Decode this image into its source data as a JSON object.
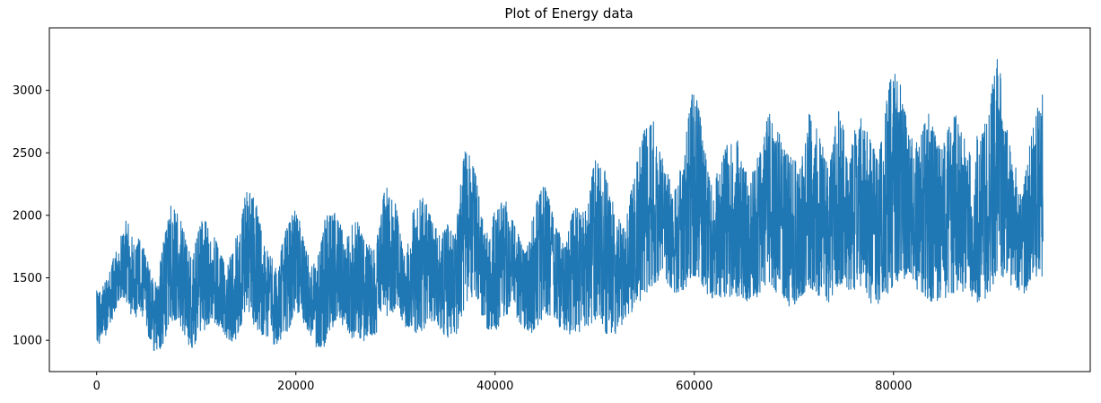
{
  "chart_data": {
    "type": "line",
    "title": "Plot of Energy data",
    "xlabel": "",
    "ylabel": "",
    "xlim": [
      -4750,
      99750
    ],
    "ylim": [
      750,
      3500
    ],
    "x_ticks": [
      0,
      20000,
      40000,
      60000,
      80000
    ],
    "x_tick_labels": [
      "0",
      "20000",
      "40000",
      "60000",
      "80000"
    ],
    "y_ticks": [
      1000,
      1500,
      2000,
      2500,
      3000
    ],
    "y_tick_labels": [
      "1000",
      "1500",
      "2000",
      "2500",
      "3000"
    ],
    "grid": false,
    "line_color": "#1f77b4",
    "series": [
      {
        "x_start": 0,
        "x_end": 95000,
        "envelope_x": [
          0,
          500,
          1500,
          2500,
          3000,
          3500,
          4500,
          5500,
          6000,
          7000,
          7500,
          8500,
          9500,
          10500,
          11500,
          12500,
          13000,
          14000,
          15000,
          16000,
          17000,
          18000,
          19000,
          20000,
          21000,
          22000,
          23000,
          24000,
          25000,
          26000,
          27000,
          28000,
          29000,
          30000,
          31000,
          32000,
          33000,
          34000,
          35000,
          36000,
          37000,
          38000,
          39000,
          40000,
          41000,
          42000,
          43000,
          44000,
          45000,
          46000,
          47000,
          48000,
          49000,
          50000,
          51000,
          52000,
          53000,
          54000,
          55000,
          56000,
          57000,
          58000,
          59000,
          59700,
          60500,
          61500,
          62500,
          63500,
          64500,
          65500,
          66500,
          67500,
          68500,
          69500,
          70500,
          71500,
          72500,
          73500,
          74500,
          75500,
          76500,
          77500,
          78500,
          79500,
          80500,
          81500,
          82500,
          83500,
          84500,
          85500,
          86500,
          87500,
          88500,
          89500,
          90500,
          91000,
          92000,
          93000,
          94000,
          95000
        ],
        "envelope_high": [
          1400,
          1420,
          1600,
          1950,
          2020,
          1850,
          1800,
          1550,
          1450,
          1950,
          2110,
          1950,
          1650,
          1990,
          1900,
          1700,
          1560,
          1850,
          2270,
          2100,
          1750,
          1600,
          1900,
          2080,
          1750,
          1600,
          2000,
          2050,
          1800,
          2000,
          1780,
          1750,
          2250,
          2100,
          1650,
          2150,
          2140,
          1900,
          1950,
          1850,
          2610,
          2350,
          1850,
          2050,
          2150,
          1950,
          1700,
          2100,
          2260,
          1950,
          1750,
          2150,
          2000,
          2450,
          2400,
          2050,
          1900,
          2350,
          2720,
          2760,
          2400,
          2200,
          2500,
          3080,
          2850,
          2300,
          2350,
          2650,
          2600,
          2250,
          2550,
          2850,
          2700,
          2500,
          2400,
          2850,
          2650,
          2400,
          2900,
          2500,
          2850,
          2650,
          2450,
          3100,
          3200,
          2650,
          2600,
          2850,
          2550,
          2700,
          2850,
          2500,
          2650,
          2800,
          3380,
          2850,
          2450,
          2200,
          2860,
          2980
        ],
        "envelope_low": [
          920,
          950,
          1150,
          1350,
          1280,
          1200,
          1150,
          950,
          870,
          1000,
          1150,
          1100,
          920,
          1050,
          1150,
          1100,
          980,
          1000,
          1150,
          1100,
          1000,
          960,
          1050,
          1200,
          1100,
          930,
          950,
          1150,
          1100,
          960,
          1000,
          1050,
          1150,
          1250,
          1100,
          1030,
          1100,
          1150,
          1000,
          1020,
          1250,
          1350,
          1100,
          1050,
          1200,
          1150,
          1050,
          1050,
          1200,
          1150,
          1050,
          1040,
          1100,
          1150,
          1050,
          1040,
          1150,
          1250,
          1350,
          1450,
          1500,
          1350,
          1400,
          1500,
          1450,
          1350,
          1300,
          1350,
          1350,
          1300,
          1350,
          1450,
          1350,
          1260,
          1300,
          1400,
          1350,
          1300,
          1450,
          1400,
          1350,
          1300,
          1280,
          1350,
          1450,
          1500,
          1350,
          1290,
          1300,
          1350,
          1400,
          1350,
          1300,
          1350,
          1550,
          1500,
          1400,
          1350,
          1450,
          1480
        ]
      }
    ]
  }
}
